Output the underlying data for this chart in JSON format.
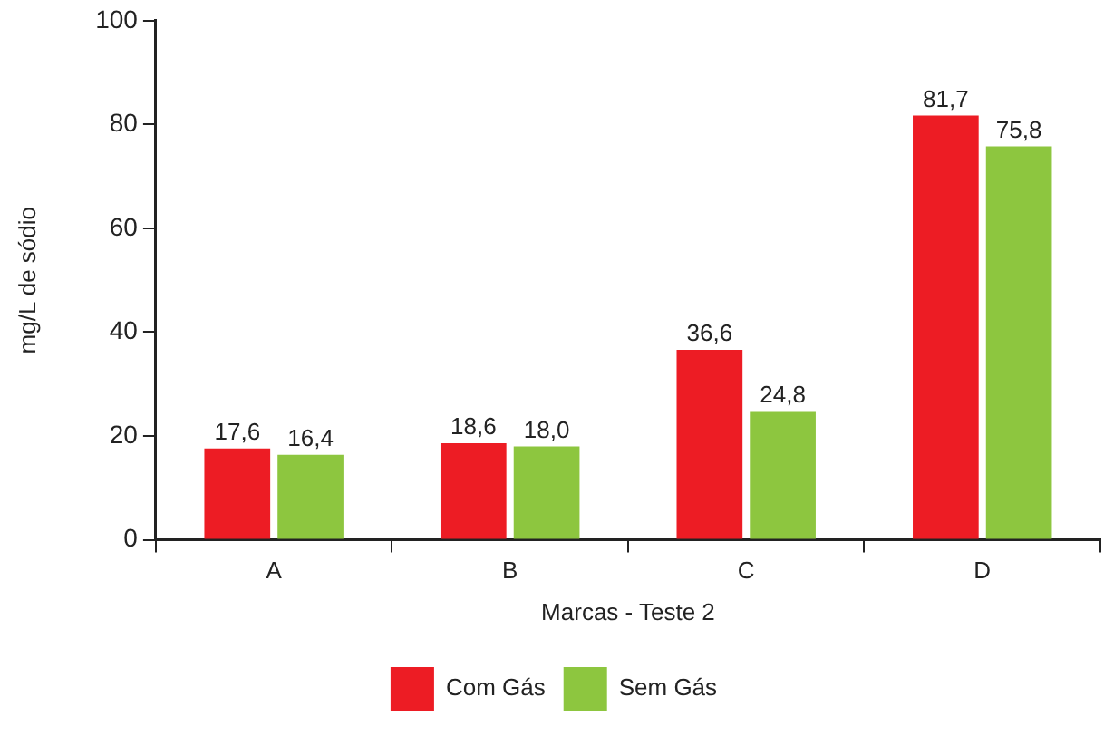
{
  "chart_data": {
    "type": "bar",
    "xlabel": "Marcas - Teste 2",
    "ylabel": "mg/L de sódio",
    "categories": [
      "A",
      "B",
      "C",
      "D"
    ],
    "series": [
      {
        "name": "Com Gás",
        "color": "#ed1c24",
        "values": [
          17.6,
          18.6,
          36.6,
          81.7
        ],
        "value_labels": [
          "17,6",
          "18,6",
          "36,6",
          "81,7"
        ]
      },
      {
        "name": "Sem Gás",
        "color": "#8dc63f",
        "values": [
          16.4,
          18.0,
          24.8,
          75.8
        ],
        "value_labels": [
          "16,4",
          "18,0",
          "24,8",
          "75,8"
        ]
      }
    ],
    "ylim": [
      0,
      100
    ],
    "yticks": [
      0,
      20,
      40,
      60,
      80,
      100
    ],
    "grid": false,
    "legend": "bottom"
  }
}
